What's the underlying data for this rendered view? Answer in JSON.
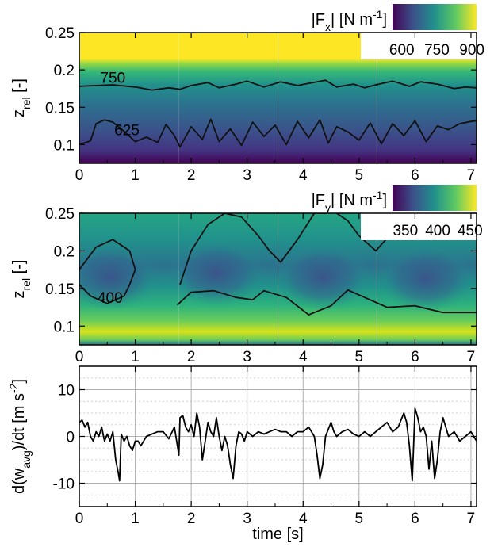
{
  "chart_data": [
    {
      "type": "heatmap",
      "colormap": "viridis",
      "xlabel": "",
      "ylabel_main": "z",
      "ylabel_sub": "rel",
      "ylabel_unit": " [-]",
      "xlim": [
        0,
        7.1
      ],
      "ylim": [
        0.075,
        0.25
      ],
      "xticks": [
        "0",
        "1",
        "2",
        "3",
        "4",
        "5",
        "6",
        "7"
      ],
      "yticks": [
        "0.1",
        "0.15",
        "0.2",
        "0.25"
      ],
      "colorbar": {
        "title_pre": "|F",
        "title_sub": "x",
        "title_post": "| [N m",
        "title_sup": "-1",
        "title_end": "]",
        "range": [
          560,
          920
        ],
        "ticks": [
          "600",
          "750",
          "900"
        ]
      },
      "contour_labels": [
        "750",
        "625"
      ],
      "contour_levels": [
        750,
        625
      ],
      "contours": [
        {
          "level": 750,
          "x": [
            0,
            0.3,
            0.6,
            1.0,
            1.3,
            1.6,
            1.8,
            2.0,
            2.3,
            2.5,
            2.8,
            3.0,
            3.3,
            3.6,
            3.9,
            4.1,
            4.4,
            4.6,
            4.9,
            5.1,
            5.3,
            5.6,
            5.9,
            6.1,
            6.4,
            6.7,
            6.9,
            7.1
          ],
          "z": [
            0.178,
            0.179,
            0.18,
            0.177,
            0.173,
            0.176,
            0.174,
            0.179,
            0.183,
            0.176,
            0.181,
            0.185,
            0.177,
            0.184,
            0.179,
            0.182,
            0.186,
            0.177,
            0.181,
            0.176,
            0.18,
            0.185,
            0.178,
            0.184,
            0.181,
            0.175,
            0.177,
            0.176
          ]
        },
        {
          "level": 625,
          "x": [
            0,
            0.2,
            0.3,
            0.45,
            0.6,
            0.8,
            1.0,
            1.2,
            1.4,
            1.55,
            1.7,
            1.8,
            2.0,
            2.2,
            2.35,
            2.5,
            2.7,
            2.9,
            3.1,
            3.3,
            3.5,
            3.7,
            3.9,
            4.1,
            4.3,
            4.45,
            4.6,
            4.8,
            5.0,
            5.2,
            5.4,
            5.6,
            5.8,
            6.0,
            6.2,
            6.4,
            6.6,
            6.8,
            7.0,
            7.1
          ],
          "z": [
            0.1,
            0.105,
            0.128,
            0.133,
            0.13,
            0.118,
            0.104,
            0.11,
            0.103,
            0.127,
            0.112,
            0.097,
            0.124,
            0.107,
            0.134,
            0.104,
            0.121,
            0.099,
            0.13,
            0.111,
            0.126,
            0.1,
            0.131,
            0.109,
            0.133,
            0.102,
            0.124,
            0.117,
            0.106,
            0.129,
            0.101,
            0.128,
            0.112,
            0.132,
            0.104,
            0.125,
            0.12,
            0.128,
            0.131,
            0.132
          ]
        }
      ]
    },
    {
      "type": "heatmap",
      "colormap": "viridis",
      "xlabel": "",
      "ylabel_main": "z",
      "ylabel_sub": "rel",
      "ylabel_unit": " [-]",
      "xlim": [
        0,
        7.1
      ],
      "ylim": [
        0.075,
        0.25
      ],
      "xticks": [
        "0",
        "1",
        "2",
        "3",
        "4",
        "5",
        "6",
        "7"
      ],
      "yticks": [
        "0.1",
        "0.15",
        "0.2",
        "0.25"
      ],
      "colorbar": {
        "title_pre": "|F",
        "title_sub": "y",
        "title_post": "| [N m",
        "title_sup": "-1",
        "title_end": "]",
        "range": [
          330,
          460
        ],
        "ticks": [
          "350",
          "400",
          "450"
        ]
      },
      "contour_labels": [
        "400"
      ],
      "contour_levels": [
        400
      ],
      "contours": [
        {
          "level": 400,
          "x": [
            0,
            0.3,
            0.6,
            0.9,
            1.0,
            0.9,
            0.8,
            0.5,
            0.2,
            0
          ],
          "z": [
            0.175,
            0.205,
            0.215,
            0.2,
            0.175,
            0.155,
            0.14,
            0.13,
            0.14,
            0.155
          ]
        },
        {
          "level": 400,
          "x": [
            1.75,
            2.0,
            2.4,
            2.8,
            3.1,
            3.3,
            3.7,
            4.1,
            4.5,
            4.8,
            5.1,
            5.5,
            6.0,
            6.5,
            6.9,
            7.1
          ],
          "z": [
            0.128,
            0.145,
            0.147,
            0.138,
            0.135,
            0.147,
            0.138,
            0.115,
            0.127,
            0.148,
            0.138,
            0.125,
            0.127,
            0.118,
            0.118,
            0.118
          ]
        },
        {
          "level": 400,
          "x": [
            1.8,
            2.0,
            2.3,
            2.6,
            2.9,
            3.2,
            3.4,
            3.6,
            3.9,
            4.2,
            4.4
          ],
          "z": [
            0.155,
            0.2,
            0.235,
            0.25,
            0.245,
            0.22,
            0.2,
            0.185,
            0.215,
            0.25,
            0.25
          ]
        },
        {
          "level": 400,
          "x": [
            4.6,
            4.8,
            5.0,
            5.3,
            5.6,
            5.9,
            6.2,
            6.5
          ],
          "z": [
            0.25,
            0.24,
            0.22,
            0.2,
            0.225,
            0.245,
            0.25,
            0.25
          ]
        }
      ]
    },
    {
      "type": "line",
      "xlabel": "time [s]",
      "ylabel_pre": "d(w",
      "ylabel_sub": "avg",
      "ylabel_mid": ")/dt [m s",
      "ylabel_sup": "-2",
      "ylabel_end": "]",
      "xlim": [
        0,
        7.1
      ],
      "ylim": [
        -15,
        15
      ],
      "xticks": [
        "0",
        "1",
        "2",
        "3",
        "4",
        "5",
        "6",
        "7"
      ],
      "yticks": [
        "-10",
        "0",
        "10"
      ],
      "grid": true,
      "series": [
        {
          "x": [
            0.0,
            0.05,
            0.1,
            0.15,
            0.2,
            0.25,
            0.3,
            0.35,
            0.4,
            0.45,
            0.5,
            0.55,
            0.6,
            0.65,
            0.7,
            0.72,
            0.75,
            0.8,
            0.85,
            0.9,
            0.95,
            1.0,
            1.05,
            1.1,
            1.15,
            1.2,
            1.3,
            1.4,
            1.5,
            1.6,
            1.7,
            1.78,
            1.8,
            1.85,
            1.9,
            1.95,
            2.0,
            2.05,
            2.1,
            2.15,
            2.2,
            2.25,
            2.3,
            2.35,
            2.4,
            2.45,
            2.5,
            2.55,
            2.6,
            2.65,
            2.7,
            2.75,
            2.8,
            2.85,
            2.9,
            2.95,
            3.0,
            3.1,
            3.2,
            3.3,
            3.4,
            3.5,
            3.6,
            3.7,
            3.8,
            3.9,
            4.0,
            4.1,
            4.2,
            4.25,
            4.3,
            4.35,
            4.4,
            4.45,
            4.5,
            4.55,
            4.6,
            4.7,
            4.8,
            4.9,
            5.0,
            5.1,
            5.2,
            5.3,
            5.4,
            5.5,
            5.6,
            5.7,
            5.8,
            5.85,
            5.9,
            5.95,
            6.0,
            6.05,
            6.1,
            6.15,
            6.2,
            6.25,
            6.3,
            6.35,
            6.4,
            6.45,
            6.5,
            6.6,
            6.7,
            6.8,
            6.9,
            7.0,
            7.1
          ],
          "values": [
            3,
            3.5,
            2,
            3,
            0,
            -1,
            1,
            0,
            2,
            -1,
            0.5,
            -1,
            1,
            -5,
            -8,
            -9.5,
            0.5,
            -1,
            0,
            -2,
            -3,
            -1,
            -1,
            -2,
            -1,
            0,
            0.5,
            1,
            1,
            -0.5,
            2,
            -4,
            4,
            4.5,
            2,
            1,
            2.5,
            0,
            5,
            2,
            -5,
            -1,
            3,
            1,
            0,
            4,
            0,
            -3,
            0,
            -2,
            -6,
            -9,
            -2,
            1,
            0.5,
            -1,
            1,
            0,
            1,
            0.5,
            1,
            1.5,
            1,
            1,
            0,
            1,
            1,
            2,
            0,
            -4,
            -9,
            -6,
            0,
            1.5,
            3,
            1,
            0,
            1,
            1.5,
            0.5,
            0,
            1,
            0,
            1,
            2,
            3,
            1,
            2,
            5,
            3,
            -2,
            -9.5,
            6,
            4,
            1,
            2,
            0,
            -7,
            -1,
            -9,
            -5,
            1,
            4,
            0,
            1,
            -1,
            0,
            1,
            -1
          ]
        }
      ]
    }
  ]
}
